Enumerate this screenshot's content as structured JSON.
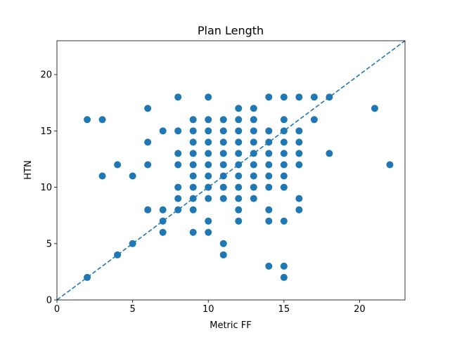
{
  "chart_data": {
    "type": "scatter",
    "title": "Plan Length",
    "xlabel": "Metric FF",
    "ylabel": "HTN",
    "xlim": [
      0,
      23
    ],
    "ylim": [
      0,
      23
    ],
    "xticks": [
      0,
      5,
      10,
      15,
      20
    ],
    "yticks": [
      0,
      5,
      10,
      15,
      20
    ],
    "grid": false,
    "reference_line": {
      "from": [
        0,
        0
      ],
      "to": [
        23,
        23
      ],
      "style": "dashed"
    },
    "colors": {
      "points": "#1f77b4",
      "reference_line": "#1f77b4",
      "axes": "#000000"
    },
    "points": [
      [
        2,
        2
      ],
      [
        2,
        16
      ],
      [
        3,
        11
      ],
      [
        3,
        16
      ],
      [
        4,
        4
      ],
      [
        4,
        12
      ],
      [
        5,
        5
      ],
      [
        5,
        11
      ],
      [
        6,
        8
      ],
      [
        6,
        12
      ],
      [
        6,
        14
      ],
      [
        6,
        17
      ],
      [
        7,
        6
      ],
      [
        7,
        7
      ],
      [
        7,
        8
      ],
      [
        7,
        15
      ],
      [
        8,
        8
      ],
      [
        8,
        9
      ],
      [
        8,
        10
      ],
      [
        8,
        12
      ],
      [
        8,
        13
      ],
      [
        8,
        15
      ],
      [
        8,
        18
      ],
      [
        9,
        6
      ],
      [
        9,
        8
      ],
      [
        9,
        9
      ],
      [
        9,
        10
      ],
      [
        9,
        11
      ],
      [
        9,
        12
      ],
      [
        9,
        13
      ],
      [
        9,
        14
      ],
      [
        9,
        15
      ],
      [
        9,
        16
      ],
      [
        10,
        6
      ],
      [
        10,
        7
      ],
      [
        10,
        9
      ],
      [
        10,
        10
      ],
      [
        10,
        11
      ],
      [
        10,
        12
      ],
      [
        10,
        13
      ],
      [
        10,
        14
      ],
      [
        10,
        15
      ],
      [
        10,
        16
      ],
      [
        10,
        18
      ],
      [
        11,
        4
      ],
      [
        11,
        5
      ],
      [
        11,
        9
      ],
      [
        11,
        10
      ],
      [
        11,
        11
      ],
      [
        11,
        12
      ],
      [
        11,
        13
      ],
      [
        11,
        14
      ],
      [
        11,
        15
      ],
      [
        11,
        16
      ],
      [
        12,
        7
      ],
      [
        12,
        8
      ],
      [
        12,
        9
      ],
      [
        12,
        10
      ],
      [
        12,
        11
      ],
      [
        12,
        12
      ],
      [
        12,
        13
      ],
      [
        12,
        14
      ],
      [
        12,
        15
      ],
      [
        12,
        16
      ],
      [
        12,
        17
      ],
      [
        13,
        9
      ],
      [
        13,
        10
      ],
      [
        13,
        11
      ],
      [
        13,
        12
      ],
      [
        13,
        13
      ],
      [
        13,
        14
      ],
      [
        13,
        15
      ],
      [
        13,
        16
      ],
      [
        13,
        17
      ],
      [
        14,
        3
      ],
      [
        14,
        7
      ],
      [
        14,
        8
      ],
      [
        14,
        10
      ],
      [
        14,
        11
      ],
      [
        14,
        12
      ],
      [
        14,
        13
      ],
      [
        14,
        14
      ],
      [
        14,
        15
      ],
      [
        14,
        18
      ],
      [
        15,
        2
      ],
      [
        15,
        3
      ],
      [
        15,
        7
      ],
      [
        15,
        10
      ],
      [
        15,
        11
      ],
      [
        15,
        12
      ],
      [
        15,
        13
      ],
      [
        15,
        14
      ],
      [
        15,
        15
      ],
      [
        15,
        16
      ],
      [
        15,
        18
      ],
      [
        16,
        8
      ],
      [
        16,
        9
      ],
      [
        16,
        12
      ],
      [
        16,
        13
      ],
      [
        16,
        14
      ],
      [
        16,
        15
      ],
      [
        16,
        18
      ],
      [
        17,
        16
      ],
      [
        17,
        18
      ],
      [
        18,
        13
      ],
      [
        18,
        18
      ],
      [
        21,
        17
      ],
      [
        22,
        12
      ]
    ]
  }
}
